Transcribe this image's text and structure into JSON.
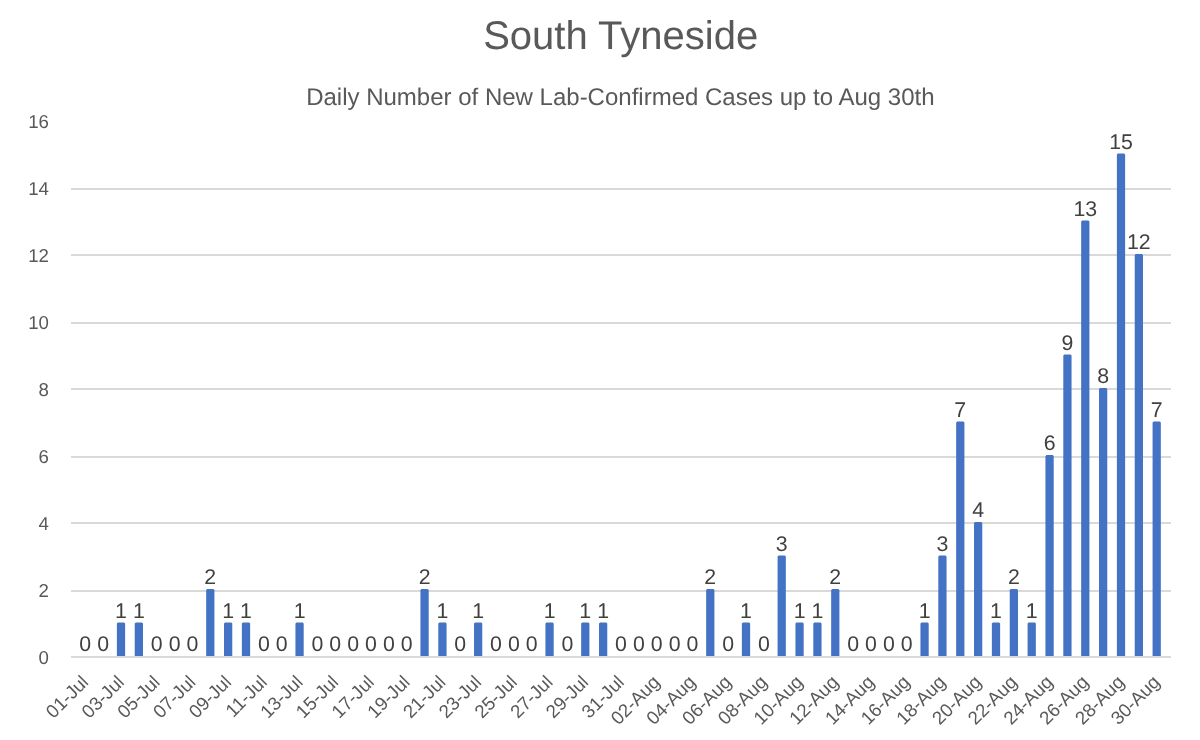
{
  "chart_data": {
    "type": "bar",
    "title": "South Tyneside",
    "subtitle": "Daily Number of New Lab-Confirmed Cases up to Aug 30th",
    "categories": [
      "01-Jul",
      null,
      "03-Jul",
      null,
      "05-Jul",
      null,
      "07-Jul",
      null,
      "09-Jul",
      null,
      "11-Jul",
      null,
      "13-Jul",
      null,
      "15-Jul",
      null,
      "17-Jul",
      null,
      "19-Jul",
      null,
      "21-Jul",
      null,
      "23-Jul",
      null,
      "25-Jul",
      null,
      "27-Jul",
      null,
      "29-Jul",
      null,
      "31-Jul",
      null,
      "02-Aug",
      null,
      "04-Aug",
      null,
      "06-Aug",
      null,
      "08-Aug",
      null,
      "10-Aug",
      null,
      "12-Aug",
      null,
      "14-Aug",
      null,
      "16-Aug",
      null,
      "18-Aug",
      null,
      "20-Aug",
      null,
      "22-Aug",
      null,
      "24-Aug",
      null,
      "26-Aug",
      null,
      "28-Aug",
      null,
      "30-Aug"
    ],
    "values": [
      0,
      0,
      1,
      1,
      0,
      0,
      0,
      2,
      1,
      1,
      0,
      0,
      1,
      0,
      0,
      0,
      0,
      0,
      0,
      2,
      1,
      0,
      1,
      0,
      0,
      0,
      1,
      0,
      1,
      1,
      0,
      0,
      0,
      0,
      0,
      2,
      0,
      1,
      0,
      3,
      1,
      1,
      2,
      0,
      0,
      0,
      0,
      1,
      3,
      7,
      4,
      1,
      2,
      1,
      6,
      9,
      13,
      8,
      15,
      12,
      7
    ],
    "color": "#4472c4",
    "ylim": [
      0,
      16
    ],
    "yticks": [
      0,
      2,
      4,
      6,
      8,
      10,
      12,
      14,
      16
    ],
    "grid": "y",
    "data_labels": true
  }
}
